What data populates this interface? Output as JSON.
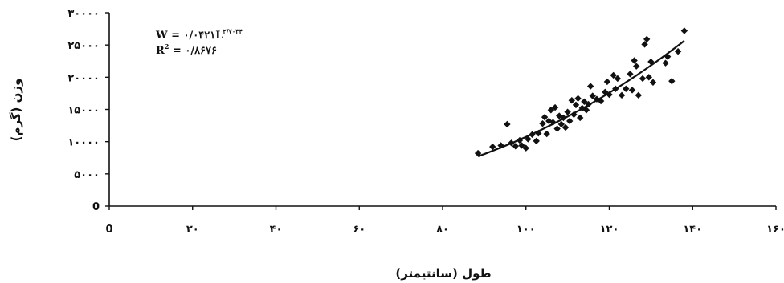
{
  "chart_data": {
    "type": "scatter",
    "xlabel": "طول (سانتیمتر)",
    "ylabel": "وزن (گرم)",
    "xlim": [
      0,
      160
    ],
    "ylim": [
      0,
      30000
    ],
    "x_ticks": [
      0,
      20,
      40,
      60,
      80,
      100,
      120,
      140,
      160
    ],
    "x_tick_labels": [
      "0",
      "۲۰",
      "۴۰",
      "۶۰",
      "۸۰",
      "۱۰۰",
      "۱۲۰",
      "۱۴۰",
      "۱۶۰"
    ],
    "y_ticks": [
      0,
      5000,
      10000,
      15000,
      20000,
      25000,
      30000
    ],
    "y_tick_labels": [
      "0",
      "۵۰۰۰",
      "۱۰۰۰۰",
      "۱۵۰۰۰",
      "۲۰۰۰۰",
      "۲۵۰۰۰",
      "۳۰۰۰۰"
    ],
    "equation": {
      "line1_main": "W = ۰/۰۴۲۱L",
      "line1_exp": "۲/۷۰۳۴",
      "line2_main": "R",
      "line2_exp": "2",
      "line2_rest": " = ۰/۸۶۷۶"
    },
    "trendline": {
      "type": "power",
      "a": 0.0421,
      "b": 2.7034,
      "x_range": [
        88.5,
        138
      ]
    },
    "points": [
      [
        88.5,
        8200
      ],
      [
        92,
        9200
      ],
      [
        94,
        9400
      ],
      [
        95.5,
        12700
      ],
      [
        96.5,
        9800
      ],
      [
        97.5,
        9300
      ],
      [
        98.5,
        10200
      ],
      [
        99,
        9400
      ],
      [
        100,
        9000
      ],
      [
        100.5,
        10400
      ],
      [
        101.5,
        11100
      ],
      [
        102.5,
        10100
      ],
      [
        103,
        11300
      ],
      [
        104,
        12800
      ],
      [
        104.5,
        13800
      ],
      [
        105,
        11200
      ],
      [
        105.5,
        13200
      ],
      [
        106,
        14900
      ],
      [
        106.5,
        13000
      ],
      [
        107,
        15300
      ],
      [
        107.5,
        12000
      ],
      [
        108,
        14000
      ],
      [
        108.5,
        12700
      ],
      [
        109,
        13700
      ],
      [
        109.5,
        12200
      ],
      [
        110,
        14600
      ],
      [
        110.5,
        13200
      ],
      [
        111,
        16400
      ],
      [
        111.5,
        14200
      ],
      [
        112,
        15700
      ],
      [
        112.5,
        16700
      ],
      [
        113,
        13700
      ],
      [
        113.5,
        15200
      ],
      [
        114,
        16200
      ],
      [
        114.5,
        14900
      ],
      [
        115,
        15800
      ],
      [
        115.5,
        18600
      ],
      [
        116,
        17100
      ],
      [
        117,
        16600
      ],
      [
        118,
        16300
      ],
      [
        119,
        17700
      ],
      [
        119.5,
        19300
      ],
      [
        120,
        17300
      ],
      [
        121,
        20300
      ],
      [
        121.5,
        18200
      ],
      [
        122,
        19800
      ],
      [
        123,
        17200
      ],
      [
        124,
        18200
      ],
      [
        125,
        20500
      ],
      [
        125.5,
        18000
      ],
      [
        126,
        22600
      ],
      [
        126.5,
        21700
      ],
      [
        127,
        17200
      ],
      [
        128,
        19800
      ],
      [
        128.5,
        25100
      ],
      [
        129,
        25900
      ],
      [
        129.5,
        20000
      ],
      [
        130,
        22400
      ],
      [
        130.5,
        19200
      ],
      [
        133.5,
        22200
      ],
      [
        134,
        23200
      ],
      [
        135,
        19400
      ],
      [
        136.5,
        24000
      ],
      [
        138,
        27200
      ]
    ]
  }
}
